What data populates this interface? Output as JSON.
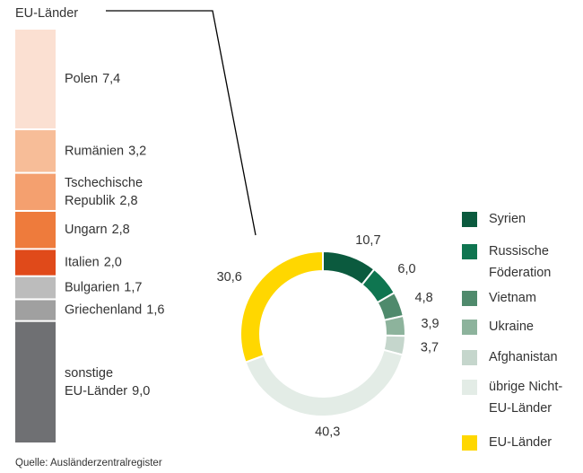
{
  "chart_data": [
    {
      "type": "donut",
      "categories": [
        "Syrien",
        "Russische Föderation",
        "Vietnam",
        "Ukraine",
        "Afghanistan",
        "übrige Nicht-EU-Länder",
        "EU-Länder"
      ],
      "values": [
        10.7,
        6.0,
        4.8,
        3.9,
        3.7,
        40.3,
        30.6
      ],
      "value_labels": [
        "10,7",
        "6,0",
        "4,8",
        "3,9",
        "3,7",
        "40,3",
        "30,6"
      ],
      "colors": [
        "#0b5a3e",
        "#0f7550",
        "#4f8a6c",
        "#8db39c",
        "#c5d6cc",
        "#e3ece6",
        "#ffd700"
      ]
    },
    {
      "type": "stacked-bar",
      "title": "EU-Länder",
      "categories": [
        "Polen",
        "Rumänien",
        "Tschechische Republik",
        "Ungarn",
        "Italien",
        "Bulgarien",
        "Griechenland",
        "sonstige EU-Länder"
      ],
      "values": [
        7.4,
        3.2,
        2.8,
        2.8,
        2.0,
        1.7,
        1.6,
        9.0
      ],
      "value_labels": [
        "7,4",
        "3,2",
        "2,8",
        "2,8",
        "2,0",
        "1,7",
        "1,6",
        "9,0"
      ],
      "colors": [
        "#fbe0d2",
        "#f7bd98",
        "#f4a06f",
        "#ee7b3c",
        "#e04a1a",
        "#bcbcbc",
        "#a0a0a0",
        "#6f7073"
      ]
    }
  ],
  "source": "Quelle: Ausländerzentralregister"
}
